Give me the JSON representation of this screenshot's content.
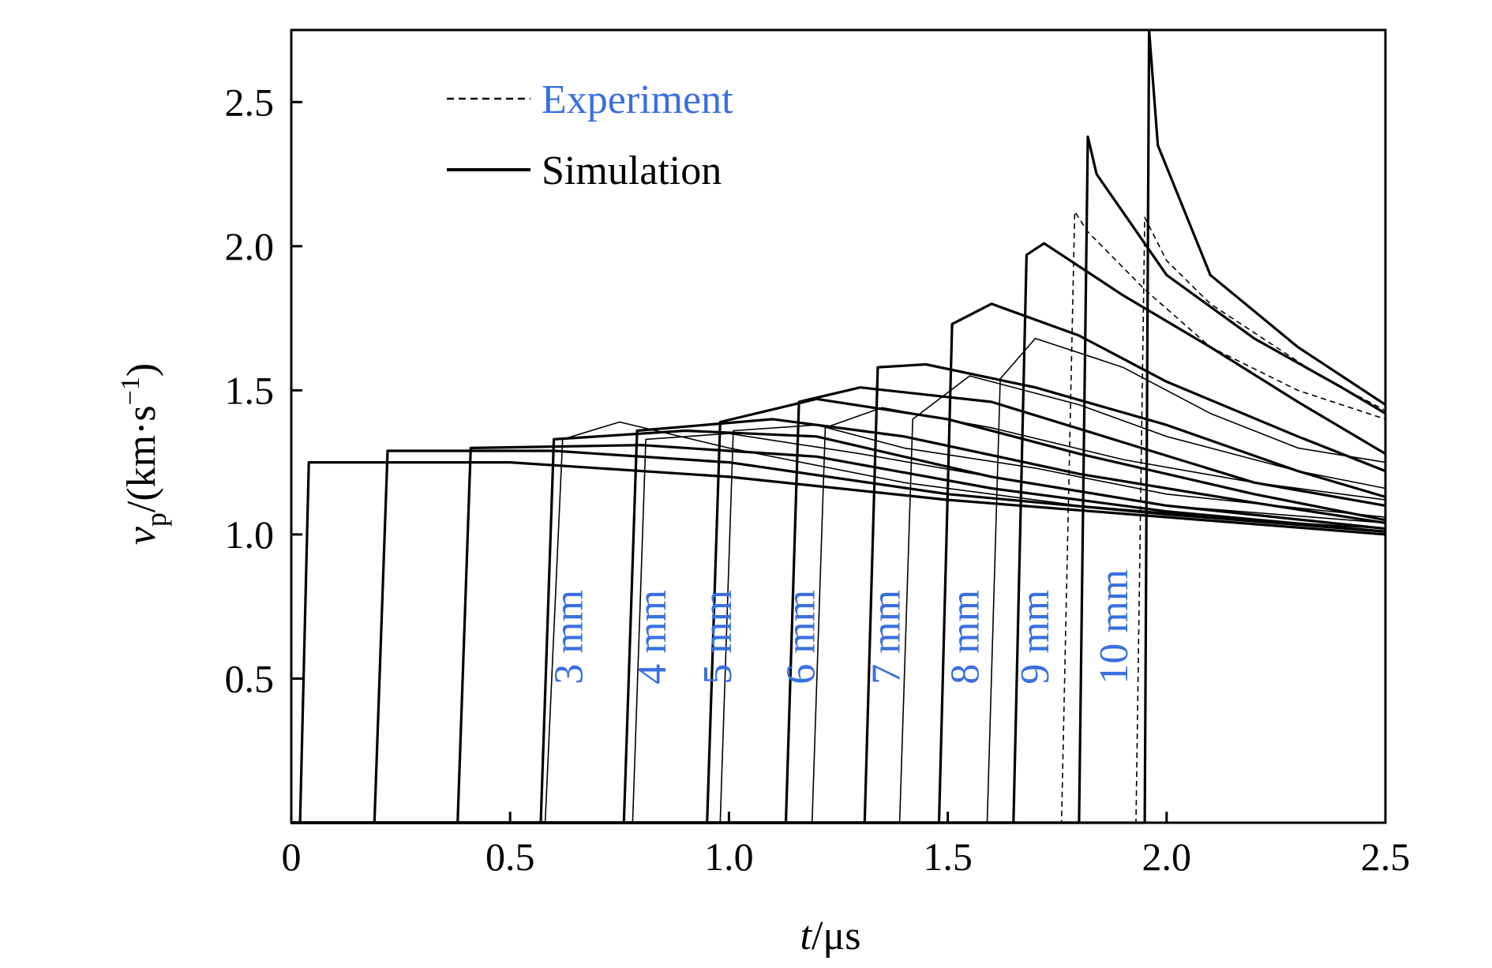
{
  "chart_data": {
    "type": "line",
    "xlabel_var": "t",
    "xlabel_unit": "/μs",
    "ylabel_var": "v",
    "ylabel_sub": "p",
    "ylabel_unit_a": "/(km·s",
    "ylabel_sup": "−1",
    "ylabel_unit_b": ")",
    "xlim": [
      0,
      2.5
    ],
    "ylim": [
      0,
      2.75
    ],
    "xticks": [
      0,
      0.5,
      1.0,
      1.5,
      2.0,
      2.5
    ],
    "xtick_labels": [
      "0",
      "0.5",
      "1.0",
      "1.5",
      "2.0",
      "2.5"
    ],
    "yticks": [
      0.5,
      1.0,
      1.5,
      2.0,
      2.5
    ],
    "ytick_labels": [
      "0.5",
      "1.0",
      "1.5",
      "2.0",
      "2.5"
    ],
    "grid": false,
    "legend_position": "top-left",
    "legend": [
      {
        "label": "Experiment",
        "style": "dashed",
        "color": "#3a6fe0"
      },
      {
        "label": "Simulation",
        "style": "solid",
        "color": "#000000"
      }
    ],
    "annotation_color": "#3a6fe0",
    "simulation": [
      {
        "x": [
          0,
          0.02,
          0.04,
          0.5,
          1.0,
          1.5,
          2.0,
          2.5
        ],
        "y": [
          0,
          0,
          1.25,
          1.25,
          1.2,
          1.12,
          1.06,
          1.0
        ]
      },
      {
        "x": [
          0,
          0.19,
          0.22,
          0.6,
          1.0,
          1.5,
          2.0,
          2.5
        ],
        "y": [
          0,
          0,
          1.29,
          1.29,
          1.25,
          1.14,
          1.07,
          1.01
        ]
      },
      {
        "x": [
          0,
          0.38,
          0.41,
          0.8,
          1.2,
          1.6,
          2.0,
          2.5
        ],
        "y": [
          0,
          0,
          1.3,
          1.31,
          1.27,
          1.16,
          1.08,
          1.01
        ]
      },
      {
        "x": [
          0,
          0.57,
          0.6,
          0.9,
          1.2,
          1.6,
          2.0,
          2.5
        ],
        "y": [
          0,
          0,
          1.33,
          1.36,
          1.34,
          1.2,
          1.1,
          1.02
        ]
      },
      {
        "x": [
          0,
          0.76,
          0.79,
          1.1,
          1.4,
          1.8,
          2.2,
          2.5
        ],
        "y": [
          0,
          0,
          1.36,
          1.4,
          1.34,
          1.21,
          1.11,
          1.04
        ]
      },
      {
        "x": [
          0,
          0.95,
          0.98,
          1.2,
          1.5,
          1.8,
          2.2,
          2.5
        ],
        "y": [
          0,
          0,
          1.39,
          1.47,
          1.4,
          1.28,
          1.14,
          1.05
        ]
      },
      {
        "x": [
          0,
          1.13,
          1.16,
          1.3,
          1.6,
          1.9,
          2.2,
          2.5
        ],
        "y": [
          0,
          0,
          1.46,
          1.51,
          1.46,
          1.32,
          1.18,
          1.1
        ]
      },
      {
        "x": [
          0,
          1.31,
          1.34,
          1.45,
          1.7,
          2.0,
          2.3,
          2.5
        ],
        "y": [
          0,
          0,
          1.58,
          1.59,
          1.51,
          1.38,
          1.22,
          1.13
        ]
      },
      {
        "x": [
          0,
          1.48,
          1.51,
          1.6,
          1.8,
          2.0,
          2.3,
          2.5
        ],
        "y": [
          0,
          0,
          1.73,
          1.8,
          1.69,
          1.53,
          1.34,
          1.22
        ]
      },
      {
        "x": [
          0,
          1.65,
          1.68,
          1.72,
          1.9,
          2.1,
          2.3,
          2.5
        ],
        "y": [
          0,
          0,
          1.97,
          2.01,
          1.83,
          1.65,
          1.46,
          1.28
        ]
      },
      {
        "x": [
          0,
          1.8,
          1.82,
          1.84,
          2.0,
          2.2,
          2.4,
          2.5
        ],
        "y": [
          0,
          0,
          2.38,
          2.25,
          1.9,
          1.68,
          1.51,
          1.42
        ]
      },
      {
        "x": [
          0,
          1.95,
          1.96,
          1.98,
          2.1,
          2.3,
          2.5
        ],
        "y": [
          0,
          0,
          2.75,
          2.35,
          1.9,
          1.65,
          1.45
        ]
      }
    ],
    "experiment": [
      {
        "x": [
          0,
          0.58,
          0.62,
          0.75,
          1.0,
          1.4,
          1.8,
          2.2,
          2.5
        ],
        "y": [
          0,
          0,
          1.33,
          1.39,
          1.3,
          1.18,
          1.1,
          1.05,
          1.02
        ]
      },
      {
        "x": [
          0,
          0.78,
          0.81,
          1.0,
          1.3,
          1.6,
          2.0,
          2.5
        ],
        "y": [
          0,
          0,
          1.33,
          1.35,
          1.28,
          1.2,
          1.1,
          1.04
        ]
      },
      {
        "x": [
          0,
          0.98,
          1.01,
          1.2,
          1.4,
          1.7,
          2.0,
          2.5
        ],
        "y": [
          0,
          0,
          1.36,
          1.38,
          1.3,
          1.23,
          1.14,
          1.06
        ]
      },
      {
        "x": [
          0,
          1.19,
          1.22,
          1.35,
          1.6,
          1.9,
          2.2,
          2.5
        ],
        "y": [
          0,
          0,
          1.37,
          1.44,
          1.37,
          1.26,
          1.18,
          1.12
        ]
      },
      {
        "x": [
          0,
          1.39,
          1.42,
          1.55,
          1.8,
          2.0,
          2.3,
          2.5
        ],
        "y": [
          0,
          0,
          1.4,
          1.55,
          1.45,
          1.34,
          1.22,
          1.16
        ]
      },
      {
        "x": [
          0,
          1.59,
          1.62,
          1.7,
          1.9,
          2.1,
          2.3,
          2.5
        ],
        "y": [
          0,
          0,
          1.54,
          1.68,
          1.58,
          1.42,
          1.3,
          1.25
        ]
      },
      {
        "x": [
          0,
          1.76,
          1.79,
          1.82,
          1.95,
          2.1,
          2.3,
          2.5
        ],
        "y": [
          0,
          0,
          2.12,
          2.05,
          1.85,
          1.65,
          1.5,
          1.4
        ]
      },
      {
        "x": [
          0,
          1.93,
          1.95,
          2.0,
          2.1,
          2.2,
          2.35,
          2.5
        ],
        "y": [
          0,
          0,
          2.1,
          1.95,
          1.8,
          1.7,
          1.55,
          1.43
        ]
      }
    ],
    "annotations": [
      {
        "label": "3 mm",
        "x": 0.665,
        "y": 0.48
      },
      {
        "label": "4 mm",
        "x": 0.855,
        "y": 0.48
      },
      {
        "label": "5 mm",
        "x": 1.005,
        "y": 0.48
      },
      {
        "label": "6 mm",
        "x": 1.195,
        "y": 0.48
      },
      {
        "label": "7 mm",
        "x": 1.39,
        "y": 0.48
      },
      {
        "label": "8 mm",
        "x": 1.57,
        "y": 0.48
      },
      {
        "label": "9 mm",
        "x": 1.73,
        "y": 0.48
      },
      {
        "label": "10 mm",
        "x": 1.91,
        "y": 0.48
      }
    ]
  }
}
